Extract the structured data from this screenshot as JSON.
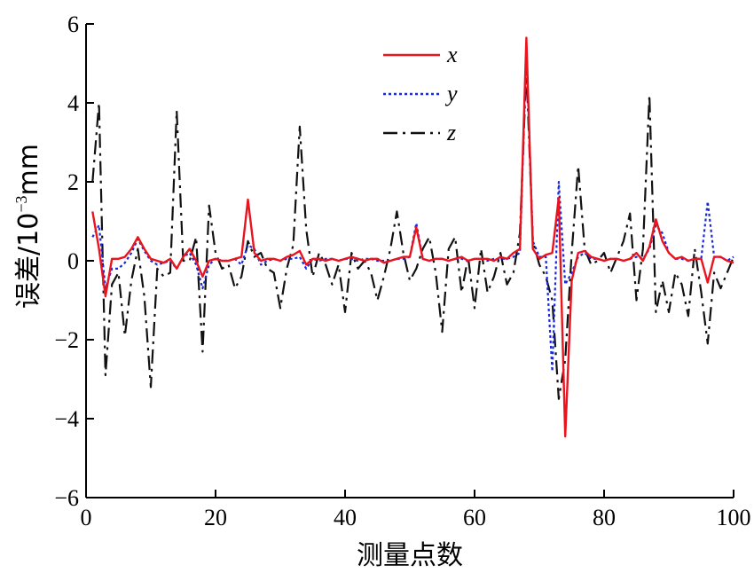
{
  "chart_data": {
    "type": "line",
    "title": "",
    "xlabel": "测量点数",
    "ylabel_main": "误差/10",
    "ylabel_exp": "−3",
    "ylabel_unit": "mm",
    "xlim": [
      0,
      100
    ],
    "ylim": [
      -6,
      6
    ],
    "xticks": [
      0,
      20,
      40,
      60,
      80,
      100
    ],
    "yticks": [
      -6,
      -4,
      -2,
      0,
      2,
      4,
      6
    ],
    "xtick_labels": [
      "0",
      "20",
      "40",
      "60",
      "80",
      "100"
    ],
    "ytick_labels": [
      "−6",
      "−4",
      "−2",
      "0",
      "2",
      "4",
      "6"
    ],
    "grid": false,
    "legend_position": "top-center",
    "series": [
      {
        "name": "x",
        "color": "#e8141e",
        "dash": "solid",
        "x": [
          1,
          2,
          3,
          4,
          5,
          6,
          7,
          8,
          9,
          10,
          11,
          12,
          13,
          14,
          15,
          16,
          17,
          18,
          19,
          20,
          21,
          22,
          23,
          24,
          25,
          26,
          27,
          28,
          29,
          30,
          31,
          32,
          33,
          34,
          35,
          36,
          37,
          38,
          39,
          40,
          41,
          42,
          43,
          44,
          45,
          46,
          47,
          48,
          49,
          50,
          51,
          52,
          53,
          54,
          55,
          56,
          57,
          58,
          59,
          60,
          61,
          62,
          63,
          64,
          65,
          66,
          67,
          68,
          69,
          70,
          71,
          72,
          73,
          74,
          75,
          76,
          77,
          78,
          79,
          80,
          81,
          82,
          83,
          84,
          85,
          86,
          87,
          88,
          89,
          90,
          91,
          92,
          93,
          94,
          95,
          96,
          97,
          98,
          99,
          100
        ],
        "y": [
          1.25,
          0.3,
          -0.9,
          0.05,
          0.05,
          0.1,
          0.3,
          0.6,
          0.3,
          0.05,
          0.0,
          -0.05,
          0.05,
          -0.2,
          0.1,
          0.3,
          0.0,
          -0.4,
          0.0,
          0.05,
          0.0,
          0.0,
          0.05,
          0.1,
          1.55,
          0.2,
          0.0,
          0.05,
          0.05,
          0.0,
          0.1,
          0.15,
          0.25,
          -0.1,
          0.05,
          0.05,
          0.0,
          0.05,
          0.0,
          0.05,
          0.1,
          0.05,
          0.0,
          0.05,
          0.05,
          -0.05,
          0.0,
          0.05,
          0.1,
          0.1,
          0.85,
          0.05,
          0.0,
          0.05,
          0.05,
          0.0,
          0.05,
          0.1,
          0.0,
          0.05,
          0.05,
          0.05,
          0.0,
          0.1,
          0.05,
          0.2,
          0.3,
          5.65,
          0.3,
          0.05,
          0.15,
          0.2,
          1.6,
          -4.45,
          -0.5,
          0.2,
          0.25,
          0.1,
          0.05,
          0.0,
          0.05,
          0.05,
          0.0,
          0.05,
          0.2,
          0.0,
          0.35,
          1.05,
          0.5,
          0.2,
          0.05,
          0.1,
          0.0,
          0.05,
          0.05,
          -0.55,
          0.1,
          0.1,
          0.0,
          -0.05
        ]
      },
      {
        "name": "y",
        "color": "#1a2ad6",
        "dash": "dotted",
        "x": [
          1,
          2,
          3,
          4,
          5,
          6,
          7,
          8,
          9,
          10,
          11,
          12,
          13,
          14,
          15,
          16,
          17,
          18,
          19,
          20,
          21,
          22,
          23,
          24,
          25,
          26,
          27,
          28,
          29,
          30,
          31,
          32,
          33,
          34,
          35,
          36,
          37,
          38,
          39,
          40,
          41,
          42,
          43,
          44,
          45,
          46,
          47,
          48,
          49,
          50,
          51,
          52,
          53,
          54,
          55,
          56,
          57,
          58,
          59,
          60,
          61,
          62,
          63,
          64,
          65,
          66,
          67,
          68,
          69,
          70,
          71,
          72,
          73,
          74,
          75,
          76,
          77,
          78,
          79,
          80,
          81,
          82,
          83,
          84,
          85,
          86,
          87,
          88,
          89,
          90,
          91,
          92,
          93,
          94,
          95,
          96,
          97,
          98,
          99,
          100
        ],
        "y": [
          0.6,
          0.9,
          -0.7,
          -0.2,
          -0.2,
          -0.05,
          0.2,
          0.55,
          0.25,
          0.0,
          -0.1,
          -0.05,
          0.0,
          -0.2,
          0.1,
          0.2,
          -0.1,
          -0.7,
          -0.1,
          0.05,
          0.0,
          0.0,
          0.05,
          -0.1,
          0.4,
          0.3,
          -0.1,
          0.0,
          0.05,
          0.0,
          0.05,
          0.05,
          0.1,
          -0.2,
          0.05,
          0.0,
          0.05,
          0.05,
          0.0,
          0.05,
          0.05,
          0.0,
          0.05,
          0.05,
          0.0,
          0.0,
          0.0,
          0.05,
          0.05,
          0.1,
          0.95,
          0.05,
          0.0,
          0.05,
          0.05,
          0.0,
          0.05,
          0.05,
          0.0,
          0.05,
          0.05,
          0.0,
          0.05,
          0.05,
          0.05,
          0.1,
          0.2,
          5.35,
          0.5,
          0.1,
          0.1,
          -2.8,
          2.0,
          -0.6,
          -0.3,
          0.1,
          0.2,
          0.05,
          0.05,
          0.0,
          0.05,
          0.05,
          0.0,
          0.05,
          0.1,
          0.05,
          0.3,
          0.9,
          0.7,
          0.2,
          0.05,
          0.05,
          0.0,
          0.05,
          0.05,
          1.5,
          0.1,
          0.1,
          0.0,
          0.1
        ]
      },
      {
        "name": "z",
        "color": "#111111",
        "dash": "dashdot",
        "x": [
          1,
          2,
          3,
          4,
          5,
          6,
          7,
          8,
          9,
          10,
          11,
          12,
          13,
          14,
          15,
          16,
          17,
          18,
          19,
          20,
          21,
          22,
          23,
          24,
          25,
          26,
          27,
          28,
          29,
          30,
          31,
          32,
          33,
          34,
          35,
          36,
          37,
          38,
          39,
          40,
          41,
          42,
          43,
          44,
          45,
          46,
          47,
          48,
          49,
          50,
          51,
          52,
          53,
          54,
          55,
          56,
          57,
          58,
          59,
          60,
          61,
          62,
          63,
          64,
          65,
          66,
          67,
          68,
          69,
          70,
          71,
          72,
          73,
          74,
          75,
          76,
          77,
          78,
          79,
          80,
          81,
          82,
          83,
          84,
          85,
          86,
          87,
          88,
          89,
          90,
          91,
          92,
          93,
          94,
          95,
          96,
          97,
          98,
          99,
          100
        ],
        "y": [
          2.0,
          4.0,
          -2.9,
          -0.6,
          -0.3,
          -1.9,
          -0.5,
          0.3,
          -0.9,
          -3.2,
          -0.2,
          -0.4,
          -0.3,
          3.8,
          0.0,
          0.0,
          0.6,
          -2.3,
          1.4,
          0.2,
          -0.2,
          -0.1,
          -0.7,
          -0.4,
          0.5,
          0.1,
          0.2,
          -0.2,
          -0.3,
          -1.2,
          -0.2,
          0.4,
          3.4,
          0.8,
          -0.4,
          0.2,
          -0.1,
          -0.6,
          -0.1,
          -1.3,
          0.2,
          -0.2,
          0.0,
          -0.3,
          -1.0,
          -0.4,
          0.3,
          1.25,
          0.2,
          -0.5,
          -0.2,
          0.3,
          0.6,
          -0.3,
          -1.8,
          0.3,
          0.6,
          -0.8,
          0.1,
          -1.2,
          0.3,
          -0.8,
          -0.4,
          0.2,
          -0.6,
          -0.3,
          0.7,
          4.9,
          0.5,
          -0.1,
          -0.4,
          -1.0,
          -3.5,
          -2.5,
          0.2,
          2.4,
          0.3,
          -0.1,
          0.0,
          0.2,
          -0.3,
          0.1,
          0.5,
          1.2,
          -1.0,
          0.3,
          4.2,
          -1.3,
          -0.5,
          -1.3,
          -0.3,
          -0.6,
          -1.4,
          0.3,
          -0.8,
          -2.1,
          -0.3,
          -0.7,
          -0.3,
          0.1
        ]
      }
    ]
  }
}
